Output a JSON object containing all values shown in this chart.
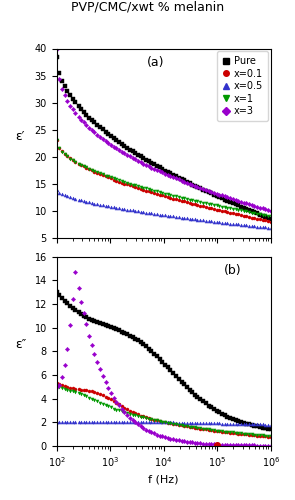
{
  "title": "PVP/CMC/xwt % melanin",
  "title_fontsize": 9,
  "fig_width": 2.95,
  "fig_height": 5.0,
  "dpi": 100,
  "freq_min": 100,
  "freq_max": 1000000,
  "panel_a": {
    "label": "(a)",
    "ylabel": "ε′",
    "ylim": [
      5,
      40
    ],
    "yticks": [
      5,
      10,
      15,
      20,
      25,
      30,
      35,
      40
    ]
  },
  "panel_b": {
    "label": "(b)",
    "ylabel": "ε″",
    "xlabel": "f (Hz)",
    "ylim": [
      0,
      16
    ],
    "yticks": [
      0,
      2,
      4,
      6,
      8,
      10,
      12,
      14,
      16
    ]
  },
  "series": [
    {
      "label": "Pure",
      "color": "#000000",
      "marker": "s"
    },
    {
      "label": "x=0.1",
      "color": "#cc0000",
      "marker": "o"
    },
    {
      "label": "x=0.5",
      "color": "#3333cc",
      "marker": "^"
    },
    {
      "label": "x=1",
      "color": "#009900",
      "marker": "v"
    },
    {
      "label": "x=3",
      "color": "#9900cc",
      "marker": "D"
    }
  ],
  "legend_fontsize": 7,
  "markersize": 2.2,
  "n_points": 80,
  "background_color": "#ffffff"
}
